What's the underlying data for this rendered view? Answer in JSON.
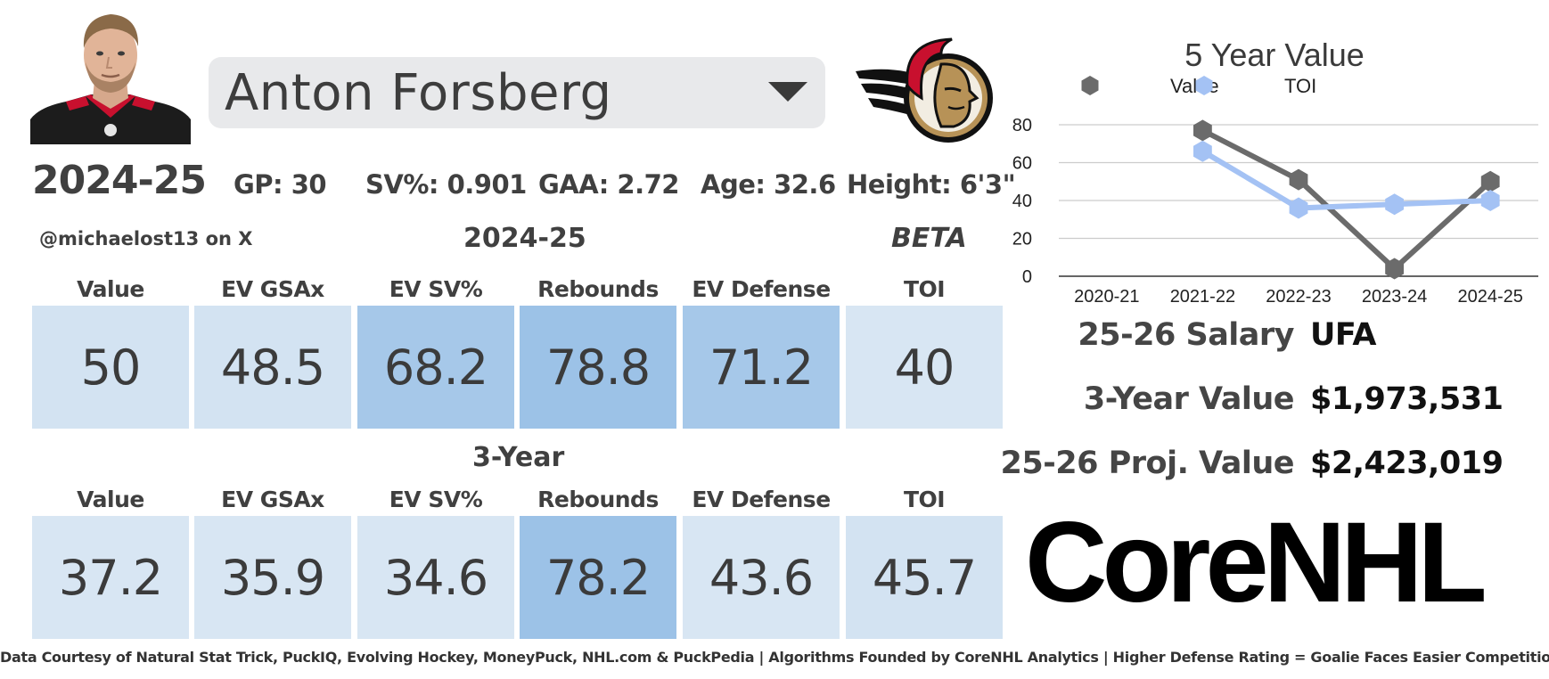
{
  "player": {
    "name": "Anton Forsberg"
  },
  "header": {
    "season": "2024-25",
    "gp": "GP: 30",
    "sv_pct": "SV%: 0.901",
    "gaa": "GAA: 2.72",
    "age": "Age: 32.6",
    "height": "Height: 6'3\""
  },
  "handle": "@michaelost13 on X",
  "beta_label": "BETA",
  "season_metrics": {
    "title": "2024-25",
    "labels": [
      "Value",
      "EV GSAx",
      "EV SV%",
      "Rebounds",
      "EV Defense",
      "TOI"
    ],
    "values": [
      "50",
      "48.5",
      "68.2",
      "78.8",
      "71.2",
      "40"
    ],
    "colors": [
      "#d3e3f2",
      "#d3e3f2",
      "#a6c8e9",
      "#9cc2e7",
      "#a6c8e9",
      "#d8e6f3"
    ]
  },
  "three_year_metrics": {
    "title": "3-Year",
    "labels": [
      "Value",
      "EV GSAx",
      "EV SV%",
      "Rebounds",
      "EV Defense",
      "TOI"
    ],
    "values": [
      "37.2",
      "35.9",
      "34.6",
      "78.2",
      "43.6",
      "45.7"
    ],
    "colors": [
      "#d8e6f3",
      "#d8e6f3",
      "#d8e6f3",
      "#9cc2e7",
      "#d8e6f3",
      "#d3e3f2"
    ]
  },
  "chart_data": {
    "type": "line",
    "title": "5 Year Value",
    "categories": [
      "2020-21",
      "2021-22",
      "2022-23",
      "2023-24",
      "2024-25"
    ],
    "series": [
      {
        "name": "Value",
        "values": [
          null,
          77,
          51,
          4,
          50
        ],
        "color": "#6b6b6b"
      },
      {
        "name": "TOI",
        "values": [
          null,
          66,
          36,
          38,
          40
        ],
        "color": "#a4c2f4"
      }
    ],
    "ylim": [
      0,
      80
    ],
    "yticks": [
      0,
      20,
      40,
      60,
      80
    ],
    "grid": true,
    "legend": "top-center"
  },
  "contract": {
    "salary_label": "25-26 Salary",
    "salary_value": "UFA",
    "three_year_label": "3-Year Value",
    "three_year_value": "$1,973,531",
    "proj_label": "25-26 Proj. Value",
    "proj_value": "$2,423,019"
  },
  "brand": {
    "text": "CoreNHL"
  },
  "footer": "Data Courtesy of Natural Stat Trick, PuckIQ, Evolving Hockey, MoneyPuck, NHL.com & PuckPedia | Algorithms Founded by CoreNHL Analytics | Higher Defense Rating = Goalie Faces Easier Competition"
}
